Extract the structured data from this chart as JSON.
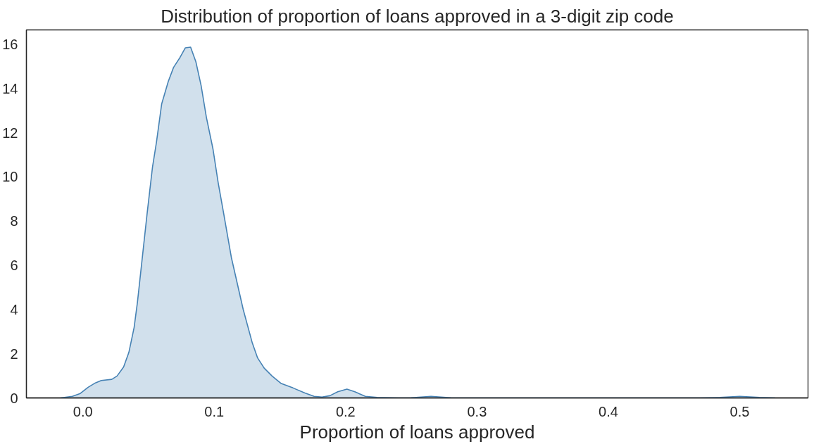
{
  "chart_data": {
    "type": "area",
    "title": "Distribution of proportion of loans approved in a 3-digit zip code",
    "xlabel": "Proportion of loans approved",
    "x": [
      -0.017,
      -0.008,
      -0.002,
      0.004,
      0.0095,
      0.014,
      0.022,
      0.026,
      0.031,
      0.035,
      0.039,
      0.0415,
      0.043,
      0.046,
      0.049,
      0.053,
      0.056,
      0.06,
      0.065,
      0.069,
      0.074,
      0.078,
      0.082,
      0.086,
      0.09,
      0.094,
      0.099,
      0.103,
      0.107,
      0.113,
      0.122,
      0.129,
      0.133,
      0.138,
      0.144,
      0.151,
      0.16,
      0.169,
      0.176,
      0.182,
      0.188,
      0.194,
      0.201,
      0.207,
      0.215,
      0.224,
      0.24,
      0.25,
      0.265,
      0.28,
      0.3,
      0.47,
      0.485,
      0.5,
      0.515,
      0.527
    ],
    "series": [
      {
        "color": "#4682b4",
        "values": [
          0.0,
          0.07,
          0.2,
          0.48,
          0.68,
          0.79,
          0.84,
          0.99,
          1.4,
          2.06,
          3.19,
          4.32,
          5.13,
          6.77,
          8.4,
          10.45,
          11.57,
          13.31,
          14.32,
          14.95,
          15.41,
          15.84,
          15.87,
          15.21,
          14.13,
          12.7,
          11.27,
          9.73,
          8.4,
          6.36,
          4.01,
          2.48,
          1.81,
          1.35,
          0.99,
          0.65,
          0.45,
          0.22,
          0.07,
          0.04,
          0.1,
          0.28,
          0.4,
          0.28,
          0.07,
          0.02,
          0.0,
          0.01,
          0.07,
          0.01,
          0.0,
          0.0,
          0.02,
          0.07,
          0.02,
          0.0
        ]
      }
    ],
    "xlim": [
      -0.043,
      0.552
    ],
    "ylim": [
      0,
      16.65
    ],
    "xticks": [
      {
        "value": 0,
        "label": "0.0"
      },
      0.1,
      0.2,
      0.3,
      0.4,
      0.5
    ],
    "yticks": [
      0,
      2,
      4,
      6,
      8,
      10,
      12,
      14,
      16
    ],
    "grid": false
  }
}
